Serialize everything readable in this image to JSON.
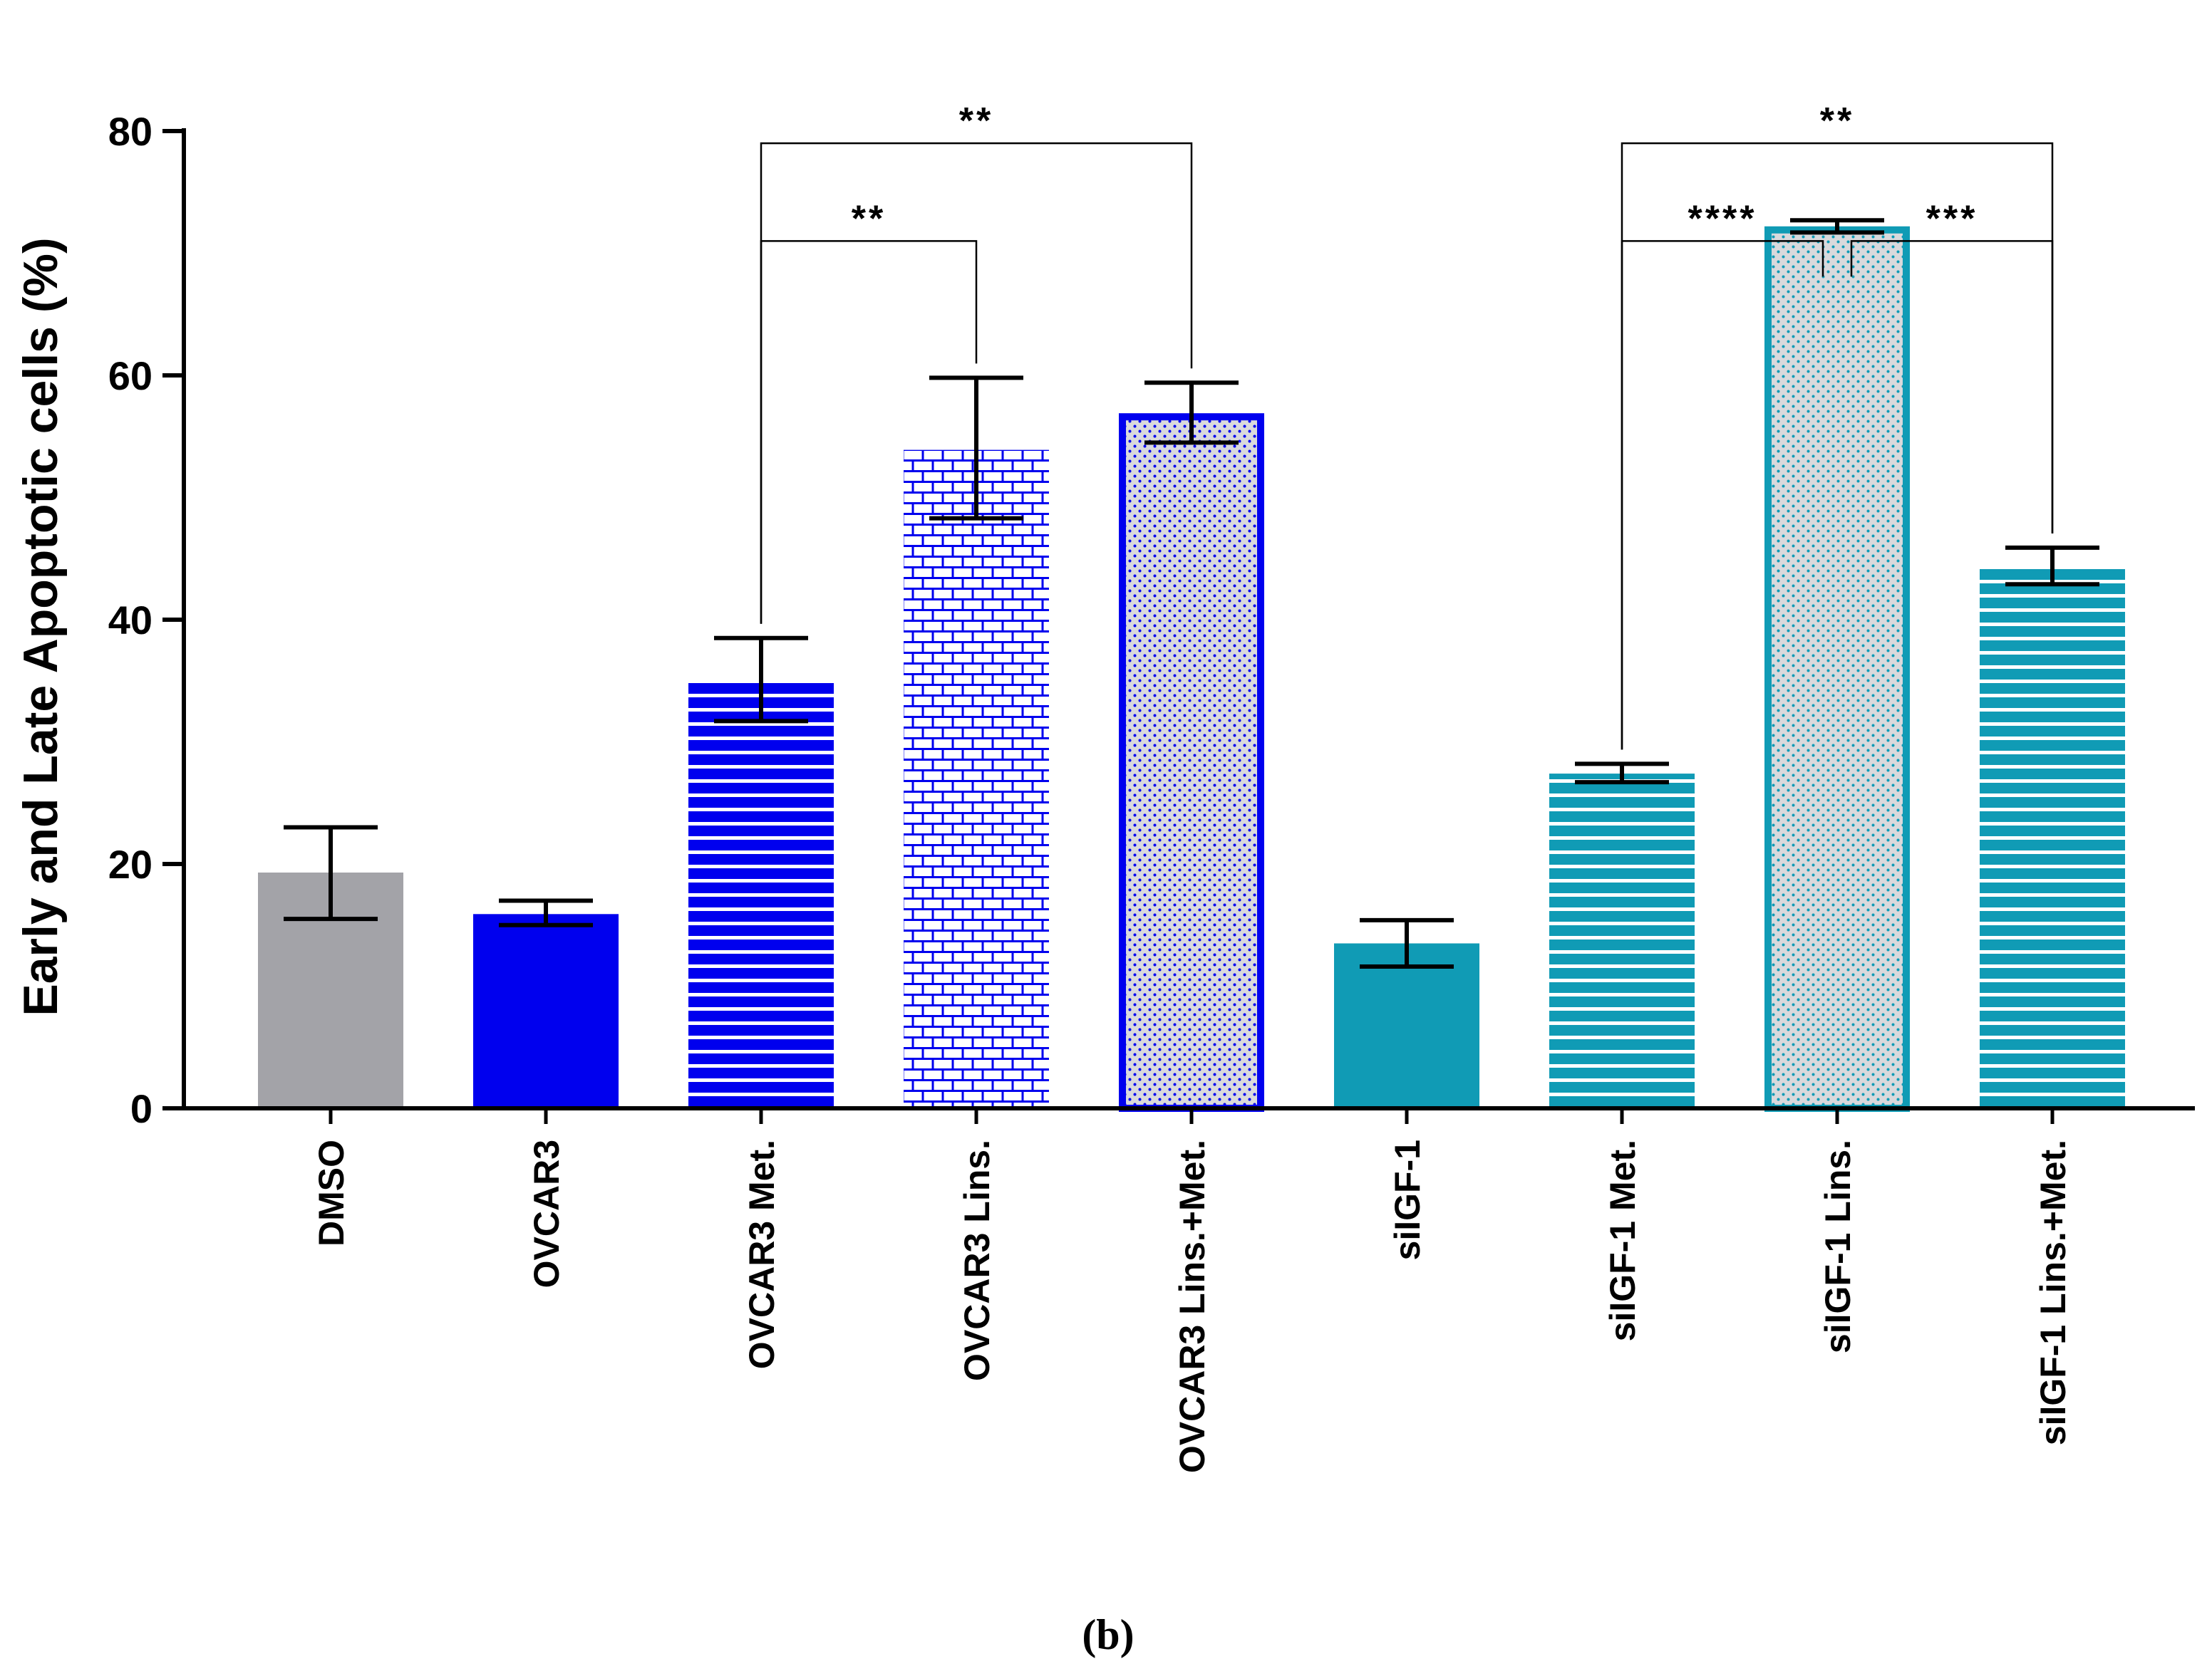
{
  "panel_label": "(b)",
  "chart_data": {
    "type": "bar",
    "title": "",
    "xlabel": "",
    "ylabel": "Early and Late Apoptotic cells (%)",
    "ylim": [
      0,
      80
    ],
    "yticks": [
      0,
      20,
      40,
      60,
      80
    ],
    "grid": false,
    "categories": [
      "DMSO",
      "OVCAR3",
      "OVCAR3 Met.",
      "OVCAR3 Lins.",
      "OVCAR3 Lins.+Met.",
      "siIGF-1",
      "siIGF-1 Met.",
      "siIGF-1 Lins.",
      "siIGF-1 Lins.+Met."
    ],
    "values": [
      19.3,
      15.9,
      35.1,
      53.9,
      56.9,
      13.5,
      27.4,
      72.2,
      44.3
    ],
    "error_low": [
      15.5,
      15.0,
      31.7,
      48.3,
      54.5,
      11.6,
      26.7,
      71.7,
      42.9
    ],
    "error_high": [
      23.0,
      17.0,
      38.5,
      59.8,
      59.4,
      15.4,
      28.2,
      72.7,
      45.9
    ],
    "styles": [
      {
        "pattern": "solid",
        "color": "#a3a3a8"
      },
      {
        "pattern": "solid",
        "color": "#0000ee"
      },
      {
        "pattern": "hlines",
        "color": "#0000ee"
      },
      {
        "pattern": "bricks",
        "color": "#0000ee"
      },
      {
        "pattern": "dots-outline",
        "color": "#0000ee"
      },
      {
        "pattern": "solid",
        "color": "#109bb5"
      },
      {
        "pattern": "hlines",
        "color": "#109bb5"
      },
      {
        "pattern": "dots-outline",
        "color": "#109bb5"
      },
      {
        "pattern": "hlines",
        "color": "#109bb5"
      }
    ],
    "significance": [
      {
        "from": 2,
        "to": 3,
        "label": "**",
        "level": 71
      },
      {
        "from": 2,
        "to": 4,
        "label": "**",
        "level": 79
      },
      {
        "from": 6,
        "to": 7,
        "label": "****",
        "level": 71
      },
      {
        "from": 7,
        "to": 8,
        "label": "***",
        "level": 71
      },
      {
        "from": 6,
        "to": 8,
        "label": "**",
        "level": 79
      }
    ]
  }
}
